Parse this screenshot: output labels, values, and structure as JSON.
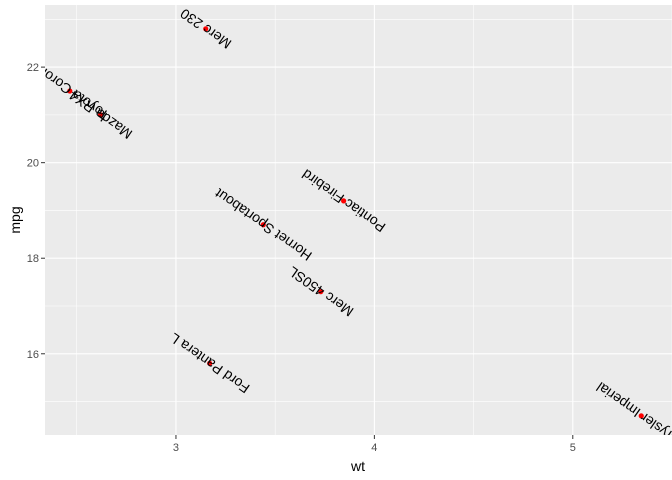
{
  "chart_data": {
    "type": "scatter",
    "xlabel": "wt",
    "ylabel": "mpg",
    "xlim": [
      2.34,
      5.5
    ],
    "ylim": [
      14.3,
      23.3
    ],
    "x_ticks": [
      3,
      4,
      5
    ],
    "y_ticks": [
      16,
      18,
      20,
      22
    ],
    "grid": true,
    "point_color": "#ff0000",
    "panel_color": "#ebebeb",
    "label_rotation_deg": 215,
    "points": [
      {
        "x": 3.15,
        "y": 22.8,
        "label": "Merc 230"
      },
      {
        "x": 2.465,
        "y": 21.5,
        "label": "Toyota Corona"
      },
      {
        "x": 2.62,
        "y": 21.0,
        "label": "Mazda RX4"
      },
      {
        "x": 3.845,
        "y": 19.2,
        "label": "Pontiac Firebird"
      },
      {
        "x": 3.44,
        "y": 18.7,
        "label": "Hornet Sportabout"
      },
      {
        "x": 3.73,
        "y": 17.3,
        "label": "Merc 450SL"
      },
      {
        "x": 3.17,
        "y": 15.8,
        "label": "Ford Pantera L"
      },
      {
        "x": 5.345,
        "y": 14.7,
        "label": "Chrysler Imperial"
      }
    ]
  }
}
